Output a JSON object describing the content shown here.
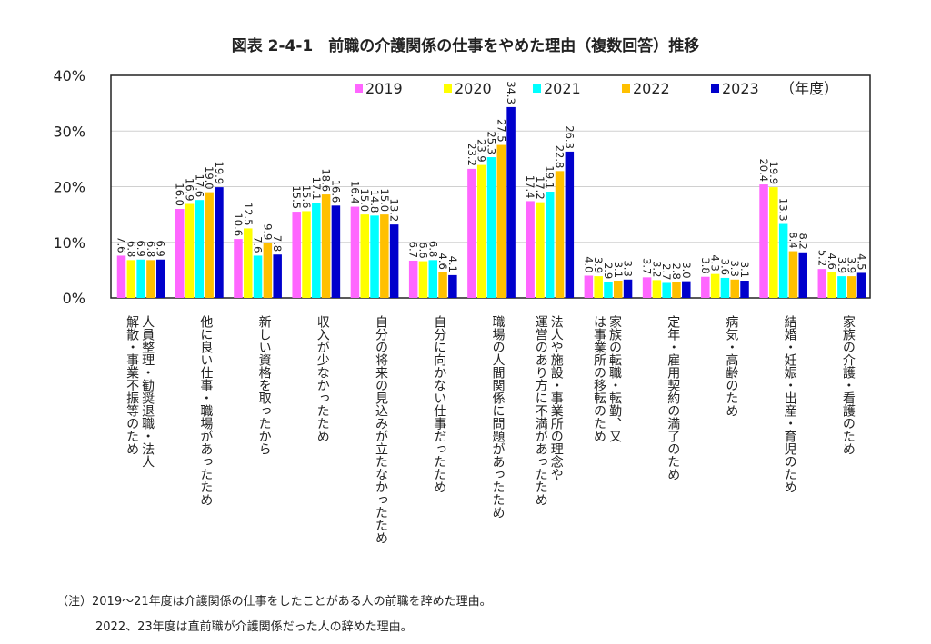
{
  "title": "図表 2-4-1　前職の介護関係の仕事をやめた理由（複数回答）推移",
  "notes": [
    "（注）2019～21年度は介護関係の仕事をしたことがある人の前職を辞めた理由。",
    "2022、23年度は直前職が介護関係だった人の辞めた理由。"
  ],
  "chart_data": {
    "type": "bar",
    "title": "図表 2-4-1　前職の介護関係の仕事をやめた理由（複数回答）推移",
    "ylim": [
      0,
      40
    ],
    "yticks": [
      "0%",
      "10%",
      "20%",
      "30%",
      "40%"
    ],
    "grid": true,
    "legend_position": "top-right",
    "legend_unit": "（年度）",
    "categories": [
      [
        "人員整理・勧奨退職・法人",
        "解散・事業不振等のため"
      ],
      [
        "他に良い仕事・職場があったため"
      ],
      [
        "新しい資格を取ったから"
      ],
      [
        "収入が少なかったため"
      ],
      [
        "自分の将来の見込みが立たなかったため"
      ],
      [
        "自分に向かない仕事だったため"
      ],
      [
        "職場の人間関係に問題があったため"
      ],
      [
        "法人や施設・事業所の理念や",
        "運営のあり方に不満があったため"
      ],
      [
        "家族の転職・転勤、又",
        "は事業所の移転のため"
      ],
      [
        "定年・雇用契約の満了のため"
      ],
      [
        "病気・高齢のため"
      ],
      [
        "結婚・妊娠・出産・育児のため"
      ],
      [
        "家族の介護・看護のため"
      ]
    ],
    "series": [
      {
        "name": "2019",
        "color": "#ff66ff",
        "values": [
          7.6,
          16.0,
          10.6,
          15.5,
          16.4,
          6.7,
          23.2,
          17.4,
          4.0,
          3.7,
          3.8,
          20.4,
          5.2
        ]
      },
      {
        "name": "2020",
        "color": "#ffff00",
        "values": [
          6.8,
          16.9,
          12.5,
          15.6,
          15.0,
          6.6,
          23.9,
          17.2,
          3.9,
          3.2,
          4.3,
          19.9,
          4.6
        ]
      },
      {
        "name": "2021",
        "color": "#00ffff",
        "values": [
          6.9,
          17.6,
          7.6,
          17.1,
          14.8,
          6.8,
          25.3,
          19.1,
          2.9,
          2.7,
          3.6,
          13.3,
          3.9
        ]
      },
      {
        "name": "2022",
        "color": "#ffc000",
        "values": [
          6.8,
          19.0,
          9.9,
          18.6,
          15.0,
          4.6,
          27.5,
          22.8,
          3.1,
          2.8,
          3.3,
          8.4,
          3.9
        ]
      },
      {
        "name": "2023",
        "color": "#0000cc",
        "values": [
          6.9,
          19.9,
          7.8,
          16.6,
          13.2,
          4.1,
          34.3,
          26.3,
          3.3,
          3.0,
          3.1,
          8.2,
          4.5
        ]
      }
    ]
  }
}
